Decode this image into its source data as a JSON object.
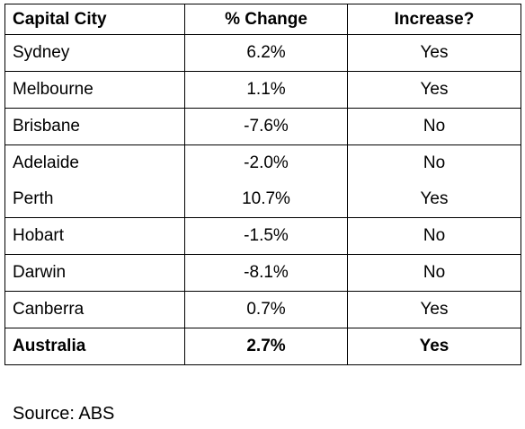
{
  "table": {
    "headers": [
      "Capital City",
      "% Change",
      "Increase?"
    ],
    "rows": [
      {
        "city": "Sydney",
        "change": "6.2%",
        "increase": "Yes"
      },
      {
        "city": "Melbourne",
        "change": "1.1%",
        "increase": "Yes"
      },
      {
        "city": "Brisbane",
        "change": "-7.6%",
        "increase": "No"
      },
      {
        "city": "Adelaide",
        "change": "-2.0%",
        "increase": "No"
      },
      {
        "city": "Perth",
        "change": "10.7%",
        "increase": "Yes"
      },
      {
        "city": "Hobart",
        "change": "-1.5%",
        "increase": "No"
      },
      {
        "city": "Darwin",
        "change": "-8.1%",
        "increase": "No"
      },
      {
        "city": "Canberra",
        "change": "0.7%",
        "increase": "Yes"
      },
      {
        "city": "Australia",
        "change": "2.7%",
        "increase": "Yes"
      }
    ]
  },
  "footer": {
    "source": "Source: ABS"
  }
}
